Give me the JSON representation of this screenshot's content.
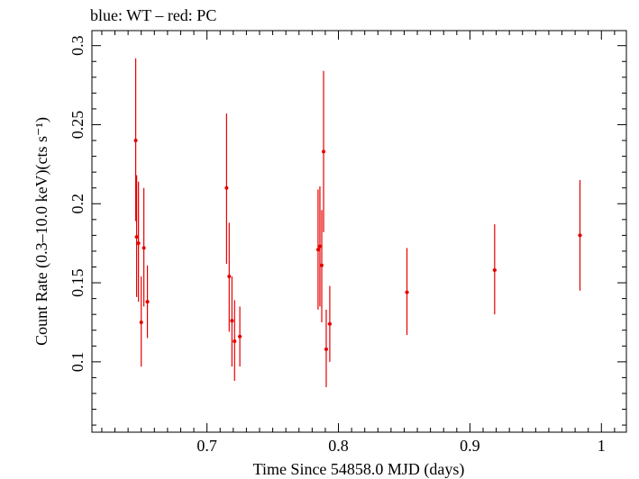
{
  "chart_data": {
    "type": "scatter",
    "title": "blue: WT – red: PC",
    "xlabel": "Time Since 54858.0 MJD (days)",
    "ylabel": "Count Rate (0.3–10.0 keV)(cts s⁻¹)",
    "xlim": [
      0.6125,
      1.019
    ],
    "ylim": [
      0.0555,
      0.3095
    ],
    "x_ticks": [
      0.7,
      0.8,
      0.9,
      1
    ],
    "x_tick_labels": [
      "0.7",
      "0.8",
      "0.9",
      "1"
    ],
    "y_ticks": [
      0.1,
      0.15,
      0.2,
      0.25,
      0.3
    ],
    "y_tick_labels": [
      "0.1",
      "0.15",
      "0.2",
      "0.25",
      "0.3"
    ],
    "grid": false,
    "series": [
      {
        "color": "#e60000",
        "points": [
          {
            "x": 0.6458,
            "y": 0.24,
            "ylo": 0.189,
            "yhi": 0.292,
            "xerr": 0.0
          },
          {
            "x": 0.6465,
            "y": 0.179,
            "ylo": 0.141,
            "yhi": 0.218,
            "xerr": 0.0
          },
          {
            "x": 0.6479,
            "y": 0.175,
            "ylo": 0.138,
            "yhi": 0.214,
            "xerr": 0.0
          },
          {
            "x": 0.65,
            "y": 0.125,
            "ylo": 0.097,
            "yhi": 0.154,
            "xerr": 0.0
          },
          {
            "x": 0.652,
            "y": 0.172,
            "ylo": 0.135,
            "yhi": 0.21,
            "xerr": 0.0
          },
          {
            "x": 0.6547,
            "y": 0.138,
            "ylo": 0.115,
            "yhi": 0.161,
            "xerr": 0.0015
          },
          {
            "x": 0.7149,
            "y": 0.21,
            "ylo": 0.162,
            "yhi": 0.257,
            "xerr": 0.0
          },
          {
            "x": 0.7169,
            "y": 0.154,
            "ylo": 0.119,
            "yhi": 0.188,
            "xerr": 0.0
          },
          {
            "x": 0.719,
            "y": 0.126,
            "ylo": 0.097,
            "yhi": 0.154,
            "xerr": 0.0
          },
          {
            "x": 0.721,
            "y": 0.113,
            "ylo": 0.088,
            "yhi": 0.139,
            "xerr": 0.0
          },
          {
            "x": 0.725,
            "y": 0.116,
            "ylo": 0.097,
            "yhi": 0.135,
            "xerr": 0.0015
          },
          {
            "x": 0.7845,
            "y": 0.171,
            "ylo": 0.133,
            "yhi": 0.209,
            "xerr": 0.0
          },
          {
            "x": 0.7859,
            "y": 0.173,
            "ylo": 0.135,
            "yhi": 0.211,
            "xerr": 0.0
          },
          {
            "x": 0.7873,
            "y": 0.161,
            "ylo": 0.125,
            "yhi": 0.196,
            "xerr": 0.0
          },
          {
            "x": 0.7887,
            "y": 0.233,
            "ylo": 0.182,
            "yhi": 0.284,
            "xerr": 0.0
          },
          {
            "x": 0.7907,
            "y": 0.108,
            "ylo": 0.084,
            "yhi": 0.133,
            "xerr": 0.0
          },
          {
            "x": 0.7934,
            "y": 0.124,
            "ylo": 0.1,
            "yhi": 0.148,
            "xerr": 0.0015
          },
          {
            "x": 0.8521,
            "y": 0.144,
            "ylo": 0.117,
            "yhi": 0.172,
            "xerr": 0.0015
          },
          {
            "x": 0.9188,
            "y": 0.158,
            "ylo": 0.13,
            "yhi": 0.187,
            "xerr": 0.0015
          },
          {
            "x": 0.9837,
            "y": 0.18,
            "ylo": 0.145,
            "yhi": 0.215,
            "xerr": 0.0015
          }
        ]
      }
    ]
  }
}
